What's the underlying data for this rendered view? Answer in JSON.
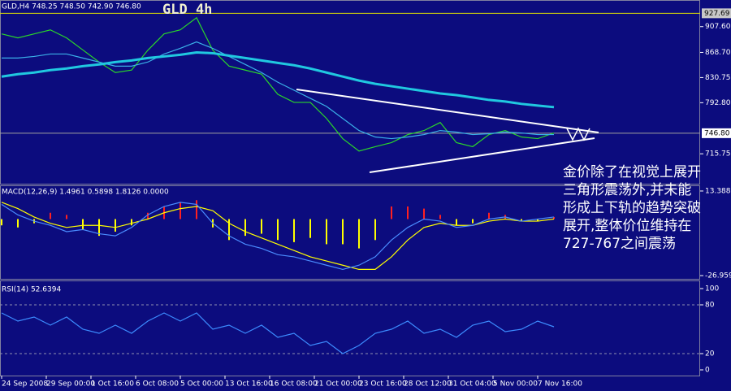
{
  "chart_data": [
    {
      "type": "line",
      "title": "GLD 4h",
      "header": "GLD,H4  748.25 748.50 742.90 746.80",
      "annotation": [
        "金价除了在视觉上展开",
        "三角形震荡外,并未能",
        "形成上下轨的趋势突破",
        "展开,整体价位维持在",
        "727-767之间震荡"
      ],
      "ylim": [
        670.6,
        945.3
      ],
      "yticks": [
        {
          "value": 907.6,
          "label": "907.60"
        },
        {
          "value": 868.7,
          "label": "868.70"
        },
        830.75,
        {
          "value": 792.8,
          "label": "792.80"
        },
        715.75
      ],
      "price_lines": [
        927.69,
        {
          "value": 746.8,
          "label": "746.80"
        }
      ],
      "series": [
        {
          "color": "#2ad62a",
          "values": [
            896.6,
            890.6,
            896.6,
            902.7,
            890.6,
            872.4,
            854.1,
            838.3,
            842.0,
            872.0,
            896.6,
            902.7,
            921.0,
            872.0,
            848.0,
            842.0,
            835.9,
            805.5,
            793.3,
            793.3,
            769.0,
            738.6,
            719.9,
            726.5,
            732.6,
            744.7,
            750.8,
            763.0,
            732.6,
            726.5,
            744.7,
            750.8,
            741.1,
            738.6,
            747.1
          ]
        },
        {
          "color": "#3ab0e8",
          "values": [
            860.2,
            860.2,
            862.6,
            866.3,
            866.3,
            860.2,
            854.1,
            848.0,
            848.0,
            854.1,
            866.3,
            874.8,
            884.5,
            874.8,
            862.6,
            850.5,
            838.3,
            823.7,
            811.6,
            799.4,
            787.3,
            769.0,
            750.8,
            741.1,
            738.6,
            741.1,
            744.7,
            750.8,
            748.5,
            744.7,
            746.0,
            748.5,
            747.2,
            744.7,
            744.7
          ]
        },
        {
          "color": "#20c8e0",
          "width": 3,
          "values": [
            832.2,
            835.9,
            838.3,
            842.0,
            844.4,
            848.0,
            850.5,
            854.1,
            856.6,
            860.2,
            862.6,
            865.1,
            868.7,
            867.5,
            863.8,
            860.2,
            856.6,
            852.9,
            849.3,
            844.4,
            838.3,
            832.2,
            826.2,
            821.3,
            817.7,
            814.0,
            810.4,
            806.7,
            804.3,
            800.7,
            797.0,
            794.6,
            791.0,
            788.5,
            786.1
          ]
        }
      ]
    },
    {
      "type": "macd",
      "title": "MACD(12,26,9) 1.4961 0.5898 1.8126 0.0000",
      "ylim": [
        -28.5,
        15.7
      ],
      "yticks": [
        13.3888,
        -26.9598
      ],
      "histogram": {
        "up_color": "#ff2020",
        "down_color": "#ffff00",
        "values": [
          -3,
          -4,
          -2,
          3,
          2,
          -5,
          -8,
          -6,
          -3,
          3,
          6,
          8,
          9,
          -4,
          -10,
          -8,
          -7,
          -10,
          -11,
          -9,
          -12,
          -12,
          -14,
          -10,
          6,
          6,
          5,
          2,
          -3,
          -2,
          3,
          2,
          -1,
          -1,
          1
        ]
      },
      "series": [
        {
          "color": "#ffff00",
          "values": [
            8,
            5,
            1,
            -2,
            -4,
            -3,
            -3,
            -4,
            -2,
            0,
            3,
            5,
            6,
            4,
            -2,
            -6,
            -9,
            -12,
            -15,
            -18,
            -20,
            -22,
            -24,
            -24,
            -18,
            -10,
            -4,
            -2,
            -3,
            -3,
            -1,
            0,
            -1,
            -1,
            0
          ]
        },
        {
          "color": "#4a8cff",
          "values": [
            7,
            2,
            -1,
            -3,
            -6,
            -5,
            -7,
            -8,
            -4,
            2,
            6,
            8,
            7,
            -2,
            -8,
            -12,
            -14,
            -17,
            -18,
            -20,
            -22,
            -24,
            -22,
            -18,
            -10,
            -4,
            0,
            -1,
            -4,
            -3,
            0,
            1,
            -1,
            0,
            1
          ]
        }
      ]
    },
    {
      "type": "line",
      "title": "RSI(14) 52.6394",
      "ylim": [
        -7,
        109
      ],
      "yticks": [
        100,
        80,
        20,
        0
      ],
      "levels": [
        80,
        20
      ],
      "series": [
        {
          "color": "#3c8cff",
          "values": [
            70,
            60,
            65,
            55,
            65,
            50,
            45,
            55,
            45,
            60,
            70,
            60,
            70,
            50,
            55,
            45,
            55,
            40,
            45,
            30,
            35,
            20,
            30,
            45,
            50,
            60,
            45,
            50,
            40,
            55,
            60,
            47,
            50,
            60,
            53
          ]
        }
      ]
    }
  ],
  "time_axis": [
    "24 Sep 2008",
    "29 Sep 00:00",
    "1 Oct 16:00",
    "6 Oct 08:00",
    "5 Oct 00:00",
    "13 Oct 16:00",
    "16 Oct 08:00",
    "21 Oct 00:00",
    "23 Oct 16:00",
    "28 Oct 12:00",
    "31 Oct 04:00",
    "5 Nov 00:00",
    "7 Nov 16:00"
  ]
}
